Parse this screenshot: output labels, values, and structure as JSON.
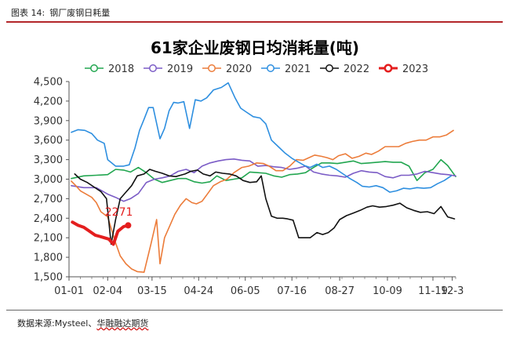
{
  "caption": {
    "label": "图表 14:",
    "text": "钢厂废钢日耗量"
  },
  "source": {
    "prefix": "数据来源:",
    "text": "Mysteel、",
    "org": "华融融达期货"
  },
  "colors": {
    "2018": "#22a650",
    "2019": "#7b5cc6",
    "2020": "#ec7c3a",
    "2021": "#2e8fe0",
    "2022": "#111111",
    "2023": "#e41e1e",
    "caption_rule": "#b3262a"
  },
  "chart_data": {
    "type": "line",
    "title": "61家企业废钢日均消耗量(吨)",
    "legend_position": "top",
    "xlabel": "",
    "ylabel": "",
    "x_range": [
      0,
      340
    ],
    "x_ticks": [
      {
        "day": 0,
        "label": "01-01"
      },
      {
        "day": 34,
        "label": "02-04"
      },
      {
        "day": 73,
        "label": "03-15"
      },
      {
        "day": 114,
        "label": "04-24"
      },
      {
        "day": 155,
        "label": "06-05"
      },
      {
        "day": 196,
        "label": "07-16"
      },
      {
        "day": 238,
        "label": "08-27"
      },
      {
        "day": 280,
        "label": "10-09"
      },
      {
        "day": 320,
        "label": "11-19"
      },
      {
        "day": 337,
        "label": "12-3"
      }
    ],
    "ylim": [
      1500,
      4500
    ],
    "y_ticks": [
      1500,
      1800,
      2100,
      2400,
      2700,
      3000,
      3300,
      3600,
      3900,
      4200,
      4500
    ],
    "y_tick_labels": [
      "1,500",
      "1,800",
      "2,100",
      "2,400",
      "2,700",
      "3,000",
      "3,300",
      "3,600",
      "3,900",
      "4,200",
      "4,500"
    ],
    "series": [
      {
        "name": "2018",
        "x": [
          2,
          13,
          24,
          34,
          41,
          48,
          54,
          61,
          68,
          75,
          82,
          89,
          96,
          103,
          110,
          117,
          124,
          130,
          138,
          145,
          152,
          159,
          166,
          173,
          180,
          187,
          194,
          201,
          208,
          215,
          222,
          229,
          236,
          243,
          250,
          257,
          264,
          271,
          278,
          285,
          292,
          299,
          306,
          313,
          320,
          327,
          333,
          340
        ],
        "y": [
          3010,
          3050,
          3060,
          3070,
          3150,
          3140,
          3110,
          3180,
          3100,
          3000,
          2950,
          2980,
          3010,
          3010,
          2960,
          2940,
          2960,
          3050,
          2980,
          3000,
          3020,
          3110,
          3100,
          3090,
          3050,
          3030,
          3070,
          3080,
          3100,
          3180,
          3250,
          3250,
          3240,
          3260,
          3280,
          3240,
          3250,
          3260,
          3270,
          3260,
          3260,
          3200,
          2980,
          3100,
          3150,
          3300,
          3210,
          3040
        ]
      },
      {
        "name": "2019",
        "x": [
          2,
          13,
          24,
          34,
          41,
          48,
          54,
          61,
          68,
          75,
          82,
          89,
          96,
          103,
          110,
          117,
          124,
          131,
          138,
          145,
          152,
          159,
          166,
          173,
          180,
          187,
          194,
          201,
          208,
          215,
          222,
          229,
          236,
          243,
          250,
          257,
          264,
          271,
          278,
          285,
          292,
          299,
          306,
          313,
          320,
          327,
          333,
          340
        ],
        "y": [
          2900,
          2870,
          2870,
          2770,
          2720,
          2660,
          2700,
          2780,
          2950,
          3000,
          3020,
          3050,
          3120,
          3150,
          3100,
          3200,
          3250,
          3280,
          3300,
          3310,
          3290,
          3280,
          3200,
          3210,
          3190,
          3180,
          3150,
          3170,
          3200,
          3110,
          3080,
          3060,
          3050,
          3030,
          3090,
          3130,
          3110,
          3100,
          3040,
          3020,
          3060,
          3060,
          3080,
          3120,
          3100,
          3080,
          3070,
          3050
        ]
      },
      {
        "name": "2020",
        "x": [
          2,
          6,
          10,
          15,
          20,
          24,
          28,
          34,
          41,
          45,
          50,
          55,
          60,
          66,
          72,
          77,
          80,
          84,
          89,
          93,
          98,
          103,
          108,
          112,
          117,
          122,
          127,
          133,
          139,
          145,
          152,
          158,
          165,
          171,
          176,
          182,
          188,
          194,
          200,
          206,
          211,
          216,
          222,
          227,
          232,
          237,
          243,
          249,
          255,
          261,
          266,
          272,
          278,
          284,
          290,
          296,
          302,
          308,
          314,
          320,
          326,
          332,
          338
        ],
        "y": [
          2970,
          2900,
          2820,
          2770,
          2720,
          2640,
          2500,
          2420,
          2020,
          1820,
          1700,
          1620,
          1580,
          1570,
          2000,
          2380,
          1700,
          2100,
          2300,
          2460,
          2600,
          2700,
          2640,
          2620,
          2660,
          2780,
          2900,
          2960,
          3000,
          3100,
          3180,
          3200,
          3250,
          3240,
          3200,
          3130,
          3130,
          3200,
          3300,
          3290,
          3330,
          3370,
          3350,
          3330,
          3300,
          3360,
          3390,
          3320,
          3350,
          3400,
          3380,
          3430,
          3500,
          3500,
          3500,
          3550,
          3580,
          3600,
          3600,
          3650,
          3650,
          3680,
          3750
        ]
      },
      {
        "name": "2021",
        "x": [
          2,
          8,
          14,
          20,
          25,
          31,
          34,
          41,
          48,
          53,
          58,
          62,
          66,
          70,
          74,
          80,
          84,
          88,
          92,
          96,
          101,
          106,
          111,
          116,
          121,
          127,
          134,
          140,
          146,
          151,
          156,
          162,
          168,
          173,
          178,
          184,
          190,
          196,
          202,
          207,
          212,
          218,
          223,
          229,
          235,
          241,
          247,
          253,
          258,
          264,
          270,
          276,
          282,
          288,
          294,
          300,
          306,
          312,
          318,
          324,
          330,
          336
        ],
        "y": [
          3720,
          3760,
          3750,
          3700,
          3600,
          3550,
          3300,
          3200,
          3200,
          3220,
          3480,
          3750,
          3920,
          4100,
          4100,
          3620,
          3780,
          4050,
          4180,
          4170,
          4190,
          3780,
          4220,
          4200,
          4250,
          4370,
          4410,
          4480,
          4250,
          4090,
          4030,
          3960,
          3940,
          3850,
          3600,
          3500,
          3400,
          3320,
          3260,
          3210,
          3180,
          3230,
          3180,
          3200,
          3150,
          3080,
          3010,
          2950,
          2890,
          2880,
          2900,
          2870,
          2800,
          2820,
          2860,
          2850,
          2870,
          2860,
          2870,
          2930,
          2980,
          3050
        ]
      },
      {
        "name": "2022",
        "x": [
          5,
          10,
          16,
          22,
          28,
          33,
          37,
          41,
          45,
          50,
          55,
          60,
          66,
          71,
          76,
          82,
          88,
          94,
          98,
          102,
          107,
          113,
          118,
          124,
          129,
          135,
          141,
          147,
          153,
          159,
          165,
          169,
          173,
          178,
          183,
          188,
          192,
          197,
          202,
          207,
          212,
          218,
          223,
          228,
          233,
          238,
          244,
          250,
          256,
          262,
          267,
          273,
          279,
          285,
          291,
          297,
          303,
          309,
          315,
          321,
          327,
          333,
          339
        ],
        "y": [
          3080,
          3000,
          2950,
          2880,
          2810,
          2700,
          2000,
          2380,
          2700,
          2800,
          2900,
          3050,
          3080,
          3150,
          3120,
          3090,
          3050,
          3040,
          3060,
          3080,
          3120,
          3140,
          3080,
          3050,
          3110,
          3090,
          3080,
          3050,
          2980,
          2950,
          2960,
          3050,
          2700,
          2430,
          2400,
          2400,
          2390,
          2370,
          2100,
          2100,
          2100,
          2180,
          2150,
          2180,
          2250,
          2380,
          2440,
          2480,
          2520,
          2570,
          2590,
          2570,
          2580,
          2600,
          2630,
          2560,
          2520,
          2490,
          2500,
          2470,
          2580,
          2420,
          2390
        ]
      },
      {
        "name": "2023",
        "x": [
          3,
          8,
          13,
          18,
          23,
          27,
          31,
          35,
          39,
          43,
          48,
          52
        ],
        "y": [
          2340,
          2290,
          2260,
          2200,
          2140,
          2120,
          2100,
          2080,
          2000,
          2200,
          2271,
          2290
        ]
      }
    ],
    "annotations": [
      {
        "series": "2023",
        "x": 48,
        "y": 2271,
        "text": "2271"
      }
    ]
  }
}
